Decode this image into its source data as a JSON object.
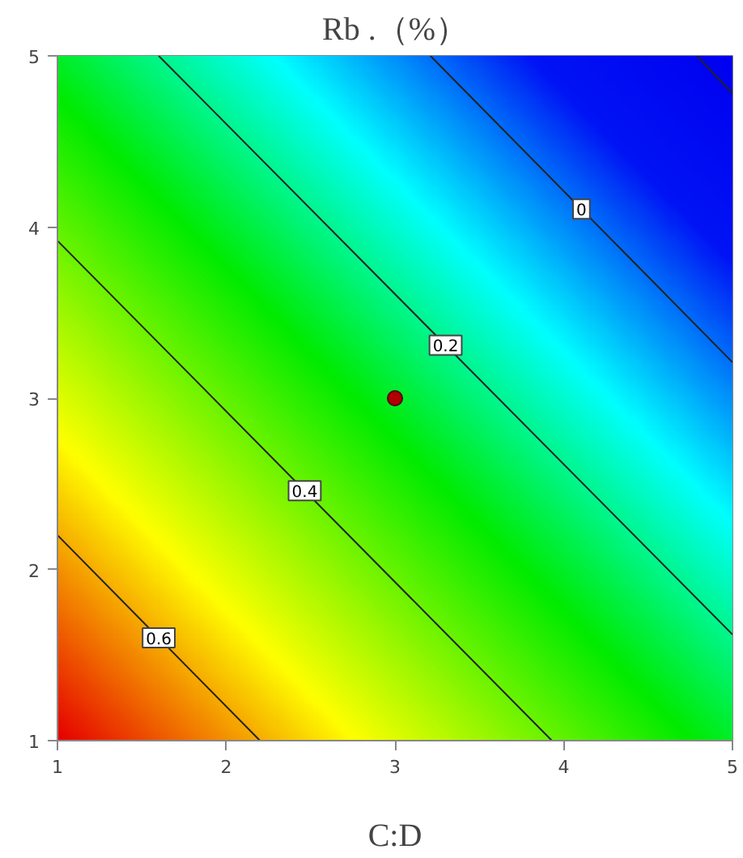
{
  "chart_data": {
    "type": "line",
    "title": "Rb .（%）",
    "xlabel": "C:D",
    "xlim": [
      1,
      5
    ],
    "ylim": [
      1,
      5
    ],
    "xticks": [
      1,
      2,
      3,
      4,
      5
    ],
    "yticks": [
      1,
      2,
      3,
      4,
      5
    ],
    "series": [
      {
        "name": "0.6",
        "color": "#222222",
        "x": [
          1,
          2.2
        ],
        "values": [
          2.2,
          1
        ]
      },
      {
        "name": "0.4",
        "color": "#222222",
        "x": [
          1,
          3.93
        ],
        "values": [
          3.92,
          1
        ]
      },
      {
        "name": "0.2",
        "color": "#222222",
        "x": [
          1.6,
          5
        ],
        "values": [
          5,
          1.62
        ]
      },
      {
        "name": "0",
        "color": "#222222",
        "x": [
          3.21,
          5
        ],
        "values": [
          5,
          3.21
        ]
      },
      {
        "color": "#222222",
        "x": [
          4.79,
          5
        ],
        "values": [
          5,
          4.78
        ]
      },
      {
        "type": "scatter",
        "marker": "circle",
        "color": "#b00000",
        "x": [
          3
        ],
        "values": [
          3
        ]
      }
    ]
  }
}
